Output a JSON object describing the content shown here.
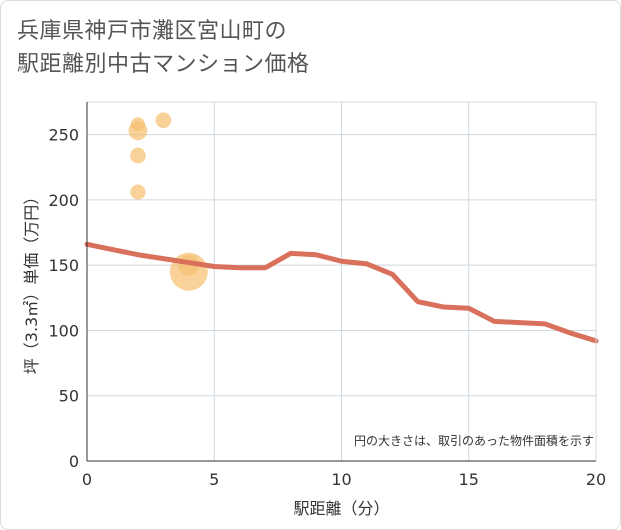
{
  "title": {
    "line1": "兵庫県神戸市灘区宮山町の",
    "line2": "駅距離別中古マンション価格"
  },
  "chart_data": {
    "type": "scatter+line",
    "title": "兵庫県神戸市灘区宮山町の駅距離別中古マンション価格",
    "xlabel": "駅距離（分）",
    "ylabel": "坪（3.3㎡）単価（万円）",
    "xlim": [
      0,
      20
    ],
    "ylim": [
      0,
      275
    ],
    "xticks": [
      0,
      5,
      10,
      15,
      20
    ],
    "yticks": [
      0,
      50,
      100,
      150,
      200,
      250
    ],
    "grid": true,
    "annotation": "円の大きさは、取引のあった物件面積を示す",
    "colors": {
      "line": "#d9705b",
      "bubble": "#f5bf6e"
    },
    "scatter": [
      {
        "x": 2,
        "y": 258,
        "size": 1
      },
      {
        "x": 2,
        "y": 253,
        "size": 2
      },
      {
        "x": 2,
        "y": 234,
        "size": 1.3
      },
      {
        "x": 2,
        "y": 206,
        "size": 1.2
      },
      {
        "x": 3,
        "y": 261,
        "size": 1.3
      },
      {
        "x": 4,
        "y": 150,
        "size": 2.5
      },
      {
        "x": 4,
        "y": 145,
        "size": 9
      }
    ],
    "line": {
      "x": [
        0,
        1,
        2,
        3,
        4,
        5,
        6,
        7,
        8,
        9,
        10,
        11,
        12,
        13,
        14,
        15,
        16,
        17,
        18,
        19,
        20
      ],
      "y": [
        166,
        162,
        158,
        155,
        152,
        149,
        148,
        148,
        159,
        158,
        153,
        151,
        143,
        122,
        118,
        117,
        107,
        106,
        105,
        98,
        92
      ]
    }
  }
}
